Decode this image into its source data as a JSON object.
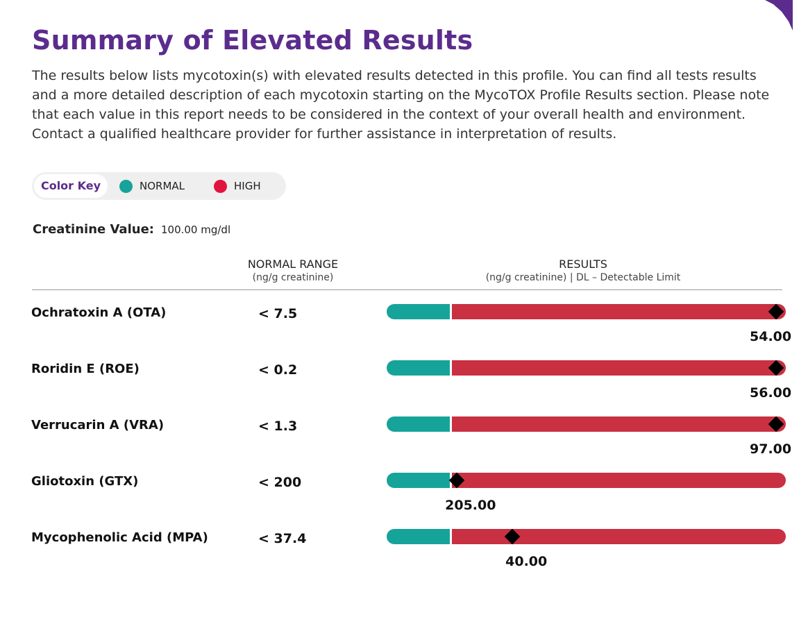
{
  "header": {
    "title": "Summary of Elevated Results",
    "intro": "The results below lists mycotoxin(s) with elevated results detected in this profile. You can find all tests results and a more detailed description of each mycotoxin starting on the MycoTOX Profile Results section. Please note that each value in this report needs to be considered in the context of your overall health and environment. Contact a qualified healthcare provider for further assistance in interpretation of results."
  },
  "color_key": {
    "label": "Color Key",
    "normal_label": "NORMAL",
    "normal_color": "#16a39a",
    "high_label": "HIGH",
    "high_color": "#e0153d"
  },
  "creatinine": {
    "label": "Creatinine Value:",
    "value": "100.00 mg/dl"
  },
  "table": {
    "normal_range_header": "NORMAL RANGE",
    "normal_range_unit": "(ng/g creatinine)",
    "results_header": "RESULTS",
    "results_unit": "(ng/g creatinine) | DL – Detectable Limit",
    "rows": [
      {
        "name": "Ochratoxin A (OTA)",
        "range": "< 7.5",
        "value": "54.00",
        "marker_fraction": 0.976
      },
      {
        "name": "Roridin E (ROE)",
        "range": "< 0.2",
        "value": "56.00",
        "marker_fraction": 0.976
      },
      {
        "name": "Verrucarin A (VRA)",
        "range": "< 1.3",
        "value": "97.00",
        "marker_fraction": 0.976
      },
      {
        "name": "Gliotoxin (GTX)",
        "range": "< 200",
        "value": "205.00",
        "marker_fraction": 0.175
      },
      {
        "name": "Mycophenolic Acid (MPA)",
        "range": "< 37.4",
        "value": "40.00",
        "marker_fraction": 0.315
      }
    ]
  },
  "colors": {
    "brand_purple": "#5b2c8d",
    "bar_normal": "#16a39a",
    "bar_high": "#c93042"
  }
}
